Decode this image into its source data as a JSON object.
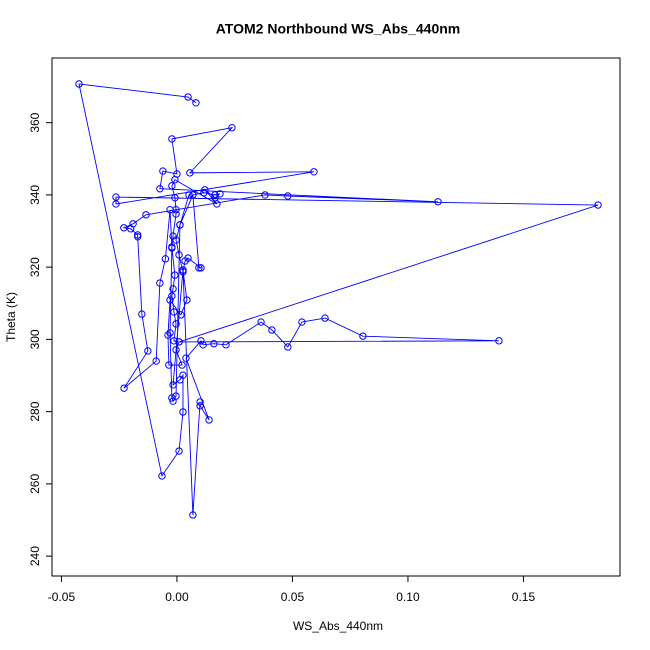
{
  "chart_data": {
    "type": "line",
    "markers": true,
    "title": "ATOM2 Northbound WS_Abs_440nm",
    "x_label": "WS_Abs_440nm",
    "y_label": "Theta (K)",
    "color": "#0000ff",
    "xlim": [
      -0.0541,
      0.1918
    ],
    "ylim": [
      234.5,
      377.9
    ],
    "xticks": [
      -0.05,
      {
        "value": 0,
        "label": "0.00"
      },
      0.05,
      {
        "value": 0.1,
        "label": "0.10"
      },
      0.15
    ],
    "yticks": [
      240,
      260,
      280,
      300,
      320,
      340,
      360
    ],
    "x": [
      0.0082,
      0.0048,
      -0.0424,
      -0.0065,
      0.0009,
      0.0026,
      0.0026,
      0.0013,
      -0.0017,
      0.0026,
      0.0069,
      0.01,
      0.01,
      0.0139,
      0.0039,
      0.0104,
      0.0113,
      0.016,
      0.0212,
      0.0364,
      0.0411,
      0.048,
      0.0541,
      0.0641,
      0.0805,
      0.1394,
      0.0009,
      0.1823,
      -0.0264,
      -0.0264,
      0.0593,
      0.0056,
      0.0238,
      -0.0022,
      0.0,
      -0.0061,
      -0.0074,
      0.113,
      0.048,
      0.0381,
      -0.0134,
      -0.019,
      -0.023,
      -0.02,
      -0.017,
      -0.017,
      -0.0152,
      -0.0126,
      -0.0229,
      -0.009,
      -0.0074,
      -0.005,
      -0.003,
      -0.0022,
      -0.003,
      -0.0022,
      -0.0017,
      -0.0004,
      0.0013,
      0.0069,
      0.0095,
      0.0104,
      0.0048,
      0.0035,
      0.0026,
      0.0009,
      -0.0004,
      0.0013,
      0.0052,
      0.0069,
      0.0117,
      0.0165,
      0.0186,
      0.0165,
      0.0121,
      0.0173,
      -0.0009,
      -0.0022,
      -0.0009,
      -0.0004,
      -0.0004,
      -0.0017,
      -0.0022,
      -0.0009,
      -0.0017,
      -0.0022,
      -0.0013,
      -0.0004,
      -0.0013,
      0.0009,
      -0.0004,
      0.0022,
      -0.0035,
      -0.0039,
      -0.003,
      0.0017,
      0.0043,
      0.0026
    ],
    "values": [
      365.5,
      367.1,
      370.7,
      262.2,
      269.1,
      279.9,
      290.1,
      288.8,
      287.4,
      319.2,
      251.4,
      282.7,
      281.6,
      277.7,
      294.8,
      299.6,
      298.5,
      298.8,
      298.5,
      304.8,
      302.6,
      297.9,
      304.8,
      305.9,
      300.9,
      299.6,
      299.3,
      337.2,
      339.4,
      337.5,
      346.4,
      346.1,
      358.6,
      355.5,
      345.8,
      346.6,
      341.7,
      338.1,
      339.7,
      340.0,
      334.5,
      332.0,
      330.9,
      330.6,
      328.9,
      328.4,
      307.0,
      296.8,
      286.5,
      294.0,
      315.6,
      322.3,
      335.9,
      325.6,
      301.8,
      283.8,
      282.9,
      284.3,
      331.7,
      340.0,
      319.8,
      319.8,
      322.5,
      321.7,
      318.7,
      323.4,
      327.5,
      331.7,
      340.0,
      340.0,
      340.6,
      340.0,
      340.3,
      339.2,
      341.4,
      337.5,
      344.2,
      342.5,
      339.2,
      335.9,
      334.7,
      328.6,
      325.3,
      317.8,
      314.0,
      312.0,
      307.6,
      304.3,
      299.6,
      299.3,
      297.1,
      292.9,
      292.9,
      301.2,
      310.9,
      306.8,
      310.9,
      319.2
    ]
  }
}
